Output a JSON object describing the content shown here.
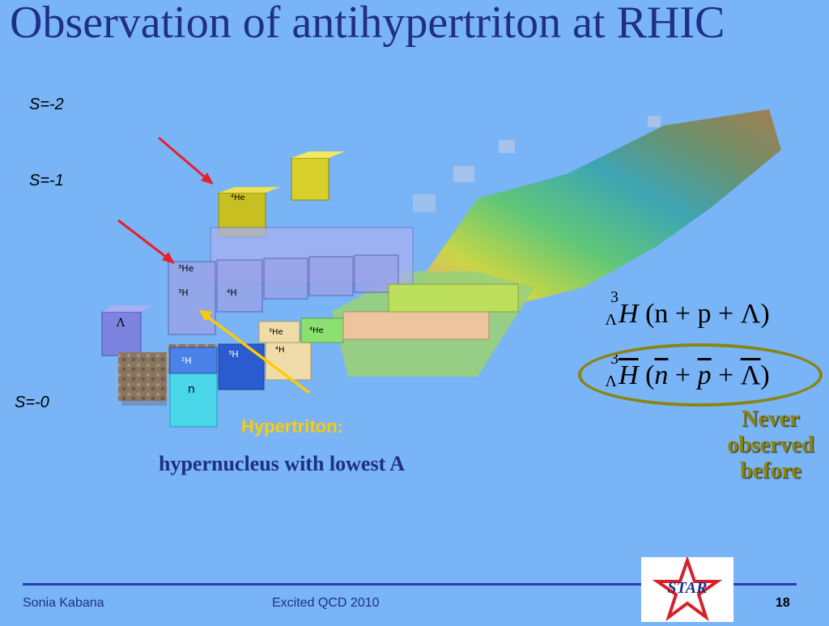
{
  "slide": {
    "title": "Observation of antihypertriton at RHIC",
    "strangeness_labels": [
      "S=-2",
      "S=-1",
      "S=-0"
    ]
  },
  "chart": {
    "blocks": {
      "lambda": "Λ",
      "n": "n",
      "h2": "²H",
      "h3": "³H",
      "lambda_h3": "³H",
      "lambda_h4": "⁴H",
      "lambda_he4": "⁴He",
      "lambda_he3": "³He",
      "he3": "³He",
      "he4": "⁴He",
      "h4": "⁴H"
    }
  },
  "formula1": {
    "sup": "3",
    "sub": "Λ",
    "symbol": "H",
    "content": "(n + p + Λ)"
  },
  "formula2": {
    "sup": "3",
    "sub": "Λ",
    "symbol": "H",
    "n": "n",
    "p": "p",
    "l": "Λ"
  },
  "note": {
    "never": "Never",
    "observed": "observed",
    "before": "before"
  },
  "annotation": {
    "title": "Hypertriton:",
    "subtitle": "hypernucleus with lowest  A"
  },
  "footer": {
    "author": "Sonia Kabana",
    "event": "Excited QCD 2010",
    "page": "18",
    "logo_text": "STAR"
  },
  "colors": {
    "background": "#78b4f6",
    "title": "#1f2f86",
    "highlight": "#ffcc00",
    "ellipse": "#8a8410",
    "arrow": "#e8202a"
  }
}
